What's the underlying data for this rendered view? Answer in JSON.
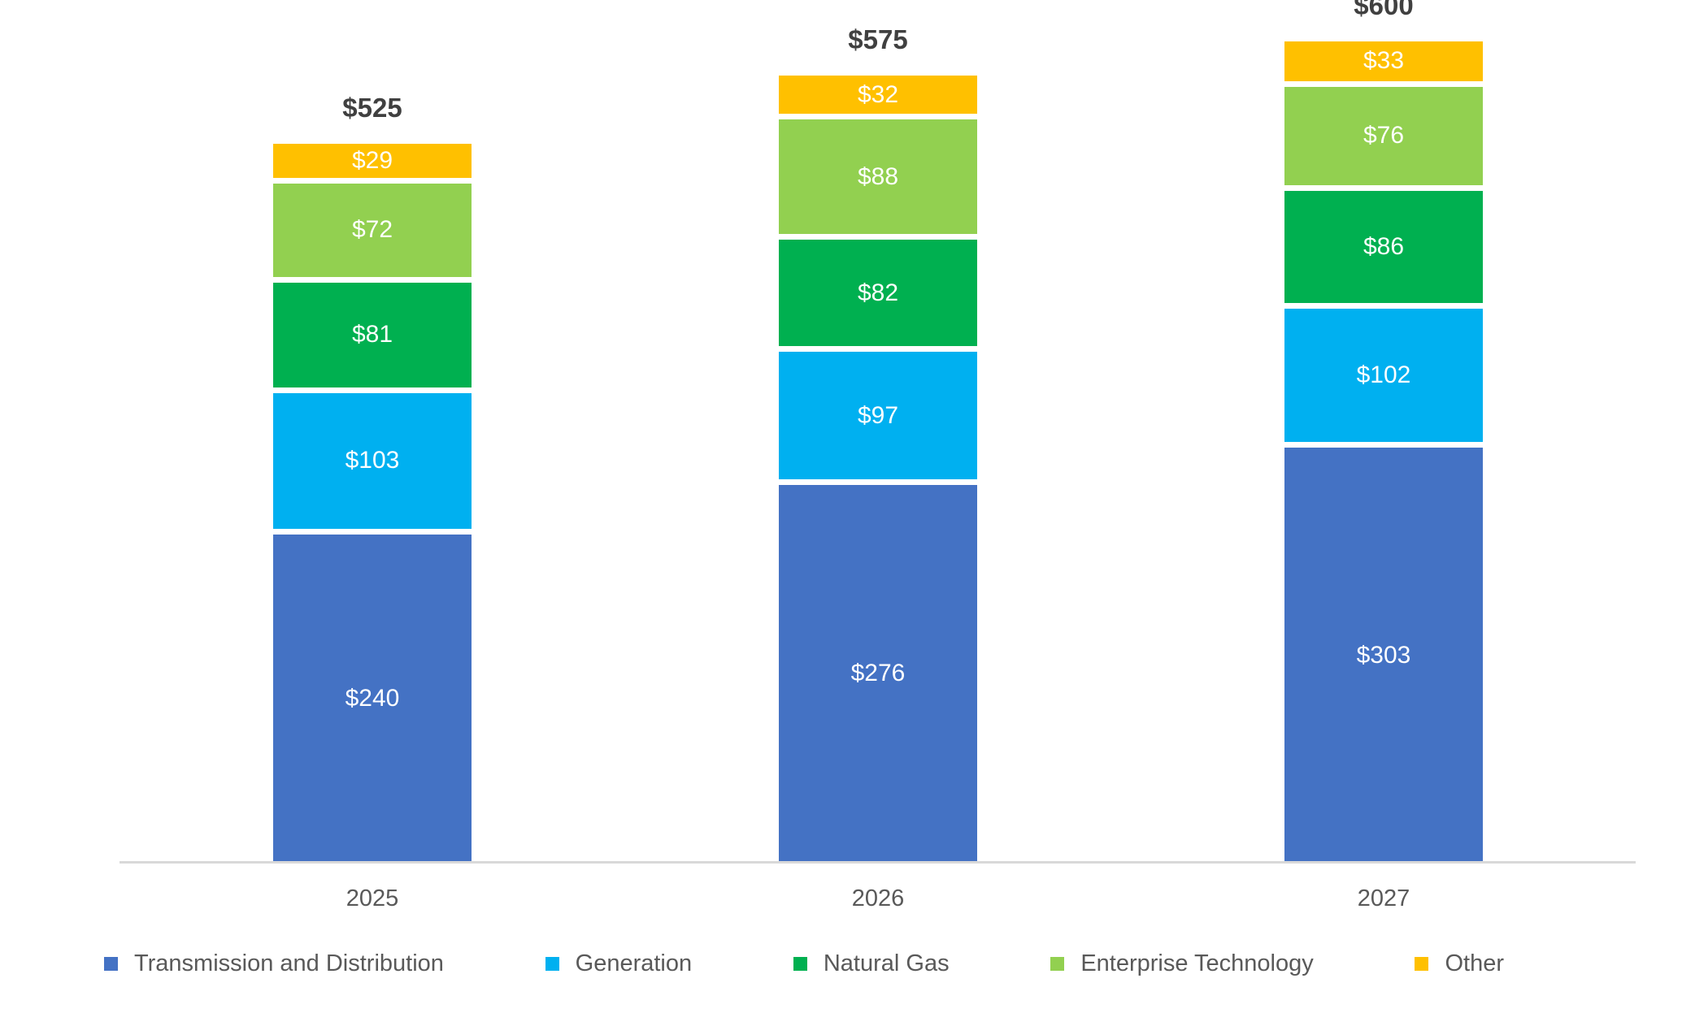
{
  "chart_data": {
    "type": "bar",
    "stacked": true,
    "orientation": "vertical",
    "categories": [
      "2025",
      "2026",
      "2027"
    ],
    "series": [
      {
        "name": "Transmission and Distribution",
        "color": "#4472C4",
        "values": [
          240,
          276,
          303
        ]
      },
      {
        "name": "Generation",
        "color": "#00B0F0",
        "values": [
          103,
          97,
          102
        ]
      },
      {
        "name": "Natural Gas",
        "color": "#00B050",
        "values": [
          81,
          82,
          86
        ]
      },
      {
        "name": "Enterprise Technology",
        "color": "#92D050",
        "values": [
          72,
          88,
          76
        ]
      },
      {
        "name": "Other",
        "color": "#FFC000",
        "values": [
          29,
          32,
          33
        ]
      }
    ],
    "totals": [
      "$525",
      "$575",
      "$600"
    ],
    "segment_labels": {
      "2025": [
        "$240",
        "$103",
        "$81",
        "$72",
        "$29"
      ],
      "2026": [
        "$276",
        "$97",
        "$82",
        "$88",
        "$32"
      ],
      "2027": [
        "$303",
        "$102",
        "$86",
        "$76",
        "$33"
      ]
    },
    "data_label_color": "#FFFFFF",
    "total_label_color": "#404040",
    "axis_label_color": "#595959",
    "axis_line_color": "#D9D9D9",
    "ylim": [
      0,
      600
    ],
    "grid": false,
    "legend_position": "bottom",
    "title": "",
    "xlabel": "",
    "ylabel": ""
  }
}
